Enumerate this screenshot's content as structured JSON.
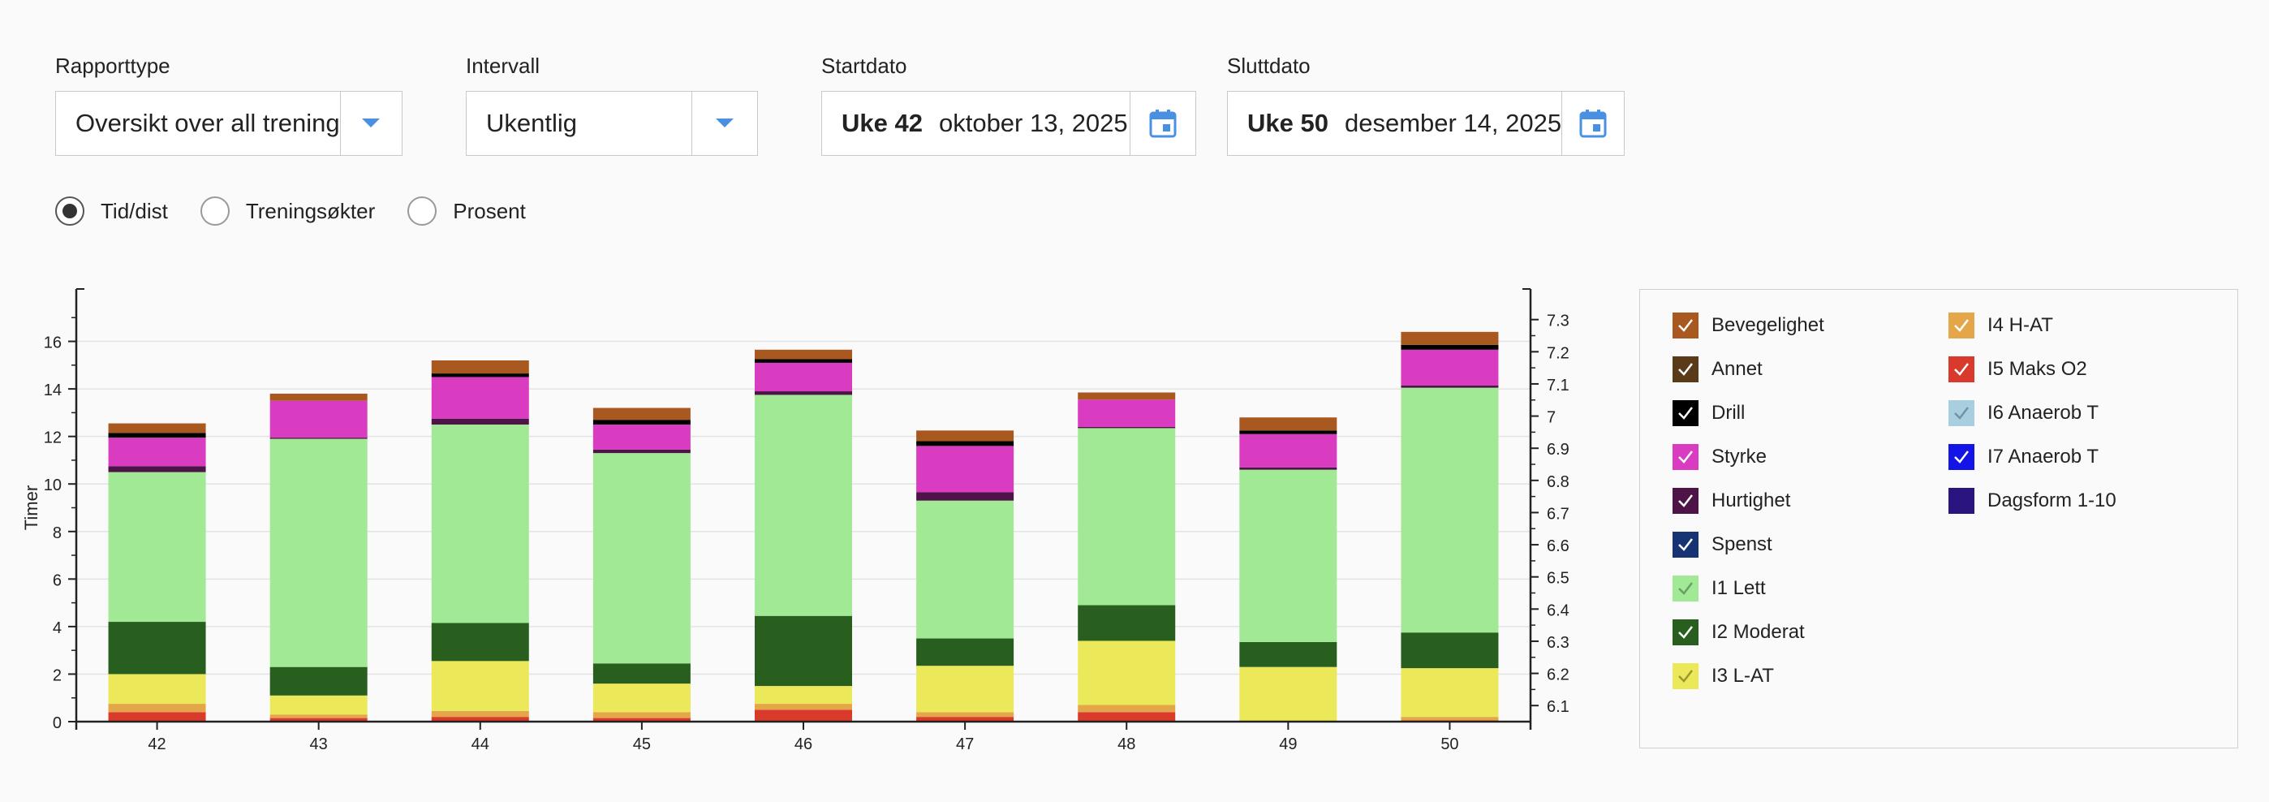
{
  "controls": {
    "report_type": {
      "label": "Rapporttype",
      "value": "Oversikt over all trening"
    },
    "interval": {
      "label": "Intervall",
      "value": "Ukentlig"
    },
    "start": {
      "label": "Startdato",
      "week": "Uke 42",
      "date": "oktober 13, 2025"
    },
    "end": {
      "label": "Sluttdato",
      "week": "Uke 50",
      "date": "desember 14, 2025"
    },
    "radios": [
      {
        "label": "Tid/dist",
        "checked": true
      },
      {
        "label": "Treningsøkter",
        "checked": false
      },
      {
        "label": "Prosent",
        "checked": false
      }
    ],
    "accent_color": "#4a90e2"
  },
  "chart_data": {
    "type": "bar",
    "stacked": true,
    "ylabel": "Timer",
    "ylim": [
      0,
      18
    ],
    "yticks": [
      "0",
      "2",
      "4",
      "6",
      "8",
      "10",
      "12",
      "14",
      "16"
    ],
    "y2lim": [
      6.05,
      7.38
    ],
    "y2ticks": [
      "6.1",
      "6.2",
      "6.3",
      "6.4",
      "6.5",
      "6.6",
      "6.7",
      "6.8",
      "6.9",
      "7",
      "7.1",
      "7.2",
      "7.3"
    ],
    "categories": [
      "42",
      "43",
      "44",
      "45",
      "46",
      "47",
      "48",
      "49",
      "50"
    ],
    "grid": true,
    "series": [
      {
        "name": "I5 Maks O2",
        "color": "#d93a2b",
        "values": [
          0.4,
          0.15,
          0.2,
          0.15,
          0.5,
          0.2,
          0.4,
          0,
          0.05
        ]
      },
      {
        "name": "I4 H-AT",
        "color": "#e5a64a",
        "values": [
          0.35,
          0.15,
          0.25,
          0.25,
          0.25,
          0.2,
          0.3,
          0,
          0.15
        ]
      },
      {
        "name": "I3 L-AT",
        "color": "#ebe85a",
        "values": [
          1.25,
          0.8,
          2.1,
          1.2,
          0.75,
          1.95,
          2.7,
          2.3,
          2.05
        ]
      },
      {
        "name": "I2 Moderat",
        "color": "#285f1e",
        "values": [
          2.2,
          1.2,
          1.6,
          0.85,
          2.95,
          1.15,
          1.5,
          1.05,
          1.5
        ]
      },
      {
        "name": "I1 Lett",
        "color": "#a1e995",
        "values": [
          6.3,
          9.6,
          8.35,
          8.85,
          9.3,
          5.8,
          7.45,
          7.25,
          10.3
        ]
      },
      {
        "name": "Spenst",
        "color": "#163473",
        "values": [
          0,
          0,
          0,
          0,
          0,
          0,
          0,
          0,
          0
        ]
      },
      {
        "name": "Hurtighet",
        "color": "#4e1448",
        "values": [
          0.25,
          0.05,
          0.25,
          0.15,
          0.15,
          0.35,
          0.05,
          0.1,
          0.1
        ]
      },
      {
        "name": "Styrke",
        "color": "#d93cc1",
        "values": [
          1.2,
          1.55,
          1.75,
          1.05,
          1.2,
          1.95,
          1.15,
          1.4,
          1.5
        ]
      },
      {
        "name": "Drill",
        "color": "#000000",
        "values": [
          0.2,
          0,
          0.15,
          0.2,
          0.15,
          0.2,
          0,
          0.15,
          0.2
        ]
      },
      {
        "name": "Annet",
        "color": "#5a3a18",
        "values": [
          0,
          0,
          0,
          0,
          0,
          0,
          0,
          0,
          0
        ]
      },
      {
        "name": "Bevegelighet",
        "color": "#a9581f",
        "values": [
          0.4,
          0.3,
          0.55,
          0.5,
          0.4,
          0.45,
          0.3,
          0.55,
          0.55
        ]
      }
    ]
  },
  "legend": {
    "items": [
      {
        "name": "Bevegelighet",
        "color": "#a9581f",
        "check": "#ffffff"
      },
      {
        "name": "Annet",
        "color": "#5a3a18",
        "check": "#ffffff"
      },
      {
        "name": "Drill",
        "color": "#000000",
        "check": "#ffffff"
      },
      {
        "name": "Styrke",
        "color": "#d93cc1",
        "check": "#ffffff"
      },
      {
        "name": "Hurtighet",
        "color": "#4e1448",
        "check": "#ffffff"
      },
      {
        "name": "Spenst",
        "color": "#163473",
        "check": "#ffffff"
      },
      {
        "name": "I1 Lett",
        "color": "#a1e995",
        "check": "#6b9e62"
      },
      {
        "name": "I2 Moderat",
        "color": "#285f1e",
        "check": "#ffffff"
      },
      {
        "name": "I3 L-AT",
        "color": "#ebe85a",
        "check": "#9a9830"
      },
      {
        "name": "I4 H-AT",
        "color": "#e5a64a",
        "check": "#ffffff"
      },
      {
        "name": "I5 Maks O2",
        "color": "#d93a2b",
        "check": "#ffffff"
      },
      {
        "name": "I6 Anaerob T",
        "color": "#a8cfe0",
        "check": "#6f93a3"
      },
      {
        "name": "I7 Anaerob T",
        "color": "#1414e6",
        "check": "#ffffff"
      },
      {
        "name": "Dagsform 1-10",
        "color": "#2a1480",
        "check": ""
      }
    ]
  }
}
